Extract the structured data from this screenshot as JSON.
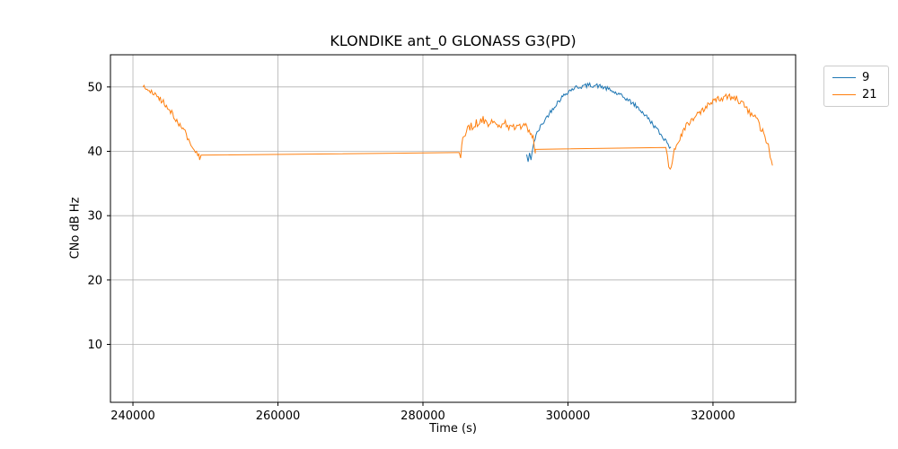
{
  "chart_data": {
    "type": "line",
    "title": "KLONDIKE ant_0 GLONASS G3(PD)",
    "xlabel": "Time (s)",
    "ylabel": "CNo dB Hz",
    "xlim": [
      236900,
      331400
    ],
    "ylim": [
      1,
      55
    ],
    "xticks": [
      240000,
      260000,
      280000,
      300000,
      320000
    ],
    "yticks": [
      10,
      20,
      30,
      40,
      50
    ],
    "grid": true,
    "grid_color": "#b0b0b0",
    "spine_color": "#000000",
    "legend_position": "outside-top-right",
    "series": [
      {
        "name": "9",
        "color": "#1f77b4",
        "segments": [
          {
            "noise": 0.35,
            "points": [
              [
                294300,
                39.5
              ],
              [
                294500,
                38.3
              ],
              [
                294700,
                39.8
              ],
              [
                294900,
                38.4
              ],
              [
                295200,
                41.0
              ],
              [
                295600,
                42.5
              ],
              [
                296200,
                43.8
              ],
              [
                297000,
                45.2
              ],
              [
                298000,
                46.8
              ],
              [
                299000,
                48.2
              ],
              [
                300000,
                49.3
              ],
              [
                301000,
                49.9
              ],
              [
                302000,
                50.1
              ],
              [
                303000,
                50.3
              ],
              [
                304000,
                50.2
              ],
              [
                305000,
                49.9
              ],
              [
                306000,
                49.4
              ],
              [
                307000,
                48.8
              ],
              [
                308000,
                48.2
              ],
              [
                309000,
                47.4
              ],
              [
                310000,
                46.4
              ],
              [
                311000,
                45.2
              ],
              [
                312000,
                43.8
              ],
              [
                312800,
                42.6
              ],
              [
                313400,
                41.8
              ],
              [
                313800,
                41.3
              ],
              [
                314000,
                40.6
              ],
              [
                314200,
                41.0
              ]
            ]
          }
        ]
      },
      {
        "name": "21",
        "color": "#ff7f0e",
        "segments": [
          {
            "noise": 0.45,
            "points": [
              [
                241400,
                50.0
              ],
              [
                241800,
                49.7
              ],
              [
                242400,
                49.3
              ],
              [
                243200,
                48.6
              ],
              [
                244200,
                47.6
              ],
              [
                245200,
                46.2
              ],
              [
                246200,
                44.6
              ],
              [
                247200,
                42.9
              ],
              [
                248000,
                41.2
              ],
              [
                248600,
                40.1
              ],
              [
                249100,
                39.5
              ],
              [
                249200,
                38.9
              ],
              [
                249400,
                39.4
              ]
            ]
          },
          {
            "noise": 0,
            "points": [
              [
                249400,
                39.4
              ],
              [
                285000,
                39.8
              ]
            ]
          },
          {
            "noise": 0.7,
            "points": [
              [
                285000,
                39.8
              ],
              [
                285200,
                39.2
              ],
              [
                285500,
                41.5
              ],
              [
                286000,
                43.0
              ],
              [
                286800,
                44.0
              ],
              [
                287500,
                44.5
              ],
              [
                288300,
                45.0
              ],
              [
                289000,
                44.3
              ],
              [
                289800,
                44.8
              ],
              [
                290500,
                43.8
              ],
              [
                291200,
                44.6
              ],
              [
                292000,
                43.4
              ],
              [
                292800,
                44.2
              ],
              [
                293500,
                43.6
              ],
              [
                294200,
                43.9
              ],
              [
                294800,
                43.1
              ],
              [
                295200,
                42.3
              ],
              [
                295500,
                40.3
              ]
            ]
          },
          {
            "noise": 0,
            "points": [
              [
                295500,
                40.3
              ],
              [
                313500,
                40.6
              ]
            ]
          },
          {
            "noise": 0.6,
            "points": [
              [
                313500,
                40.6
              ],
              [
                313700,
                39.0
              ],
              [
                313900,
                37.3
              ],
              [
                314100,
                36.8
              ],
              [
                314400,
                38.5
              ],
              [
                314800,
                40.5
              ],
              [
                315300,
                41.9
              ],
              [
                316000,
                43.4
              ],
              [
                317000,
                44.8
              ],
              [
                318000,
                45.8
              ],
              [
                319000,
                46.8
              ],
              [
                320000,
                47.6
              ],
              [
                321000,
                48.2
              ],
              [
                321800,
                48.5
              ],
              [
                322600,
                48.4
              ],
              [
                323400,
                48.0
              ],
              [
                324200,
                47.3
              ],
              [
                325000,
                46.3
              ],
              [
                325800,
                45.2
              ],
              [
                326400,
                44.1
              ],
              [
                327000,
                42.6
              ],
              [
                327500,
                41.1
              ],
              [
                327900,
                39.6
              ],
              [
                328200,
                38.2
              ]
            ]
          }
        ]
      }
    ]
  }
}
